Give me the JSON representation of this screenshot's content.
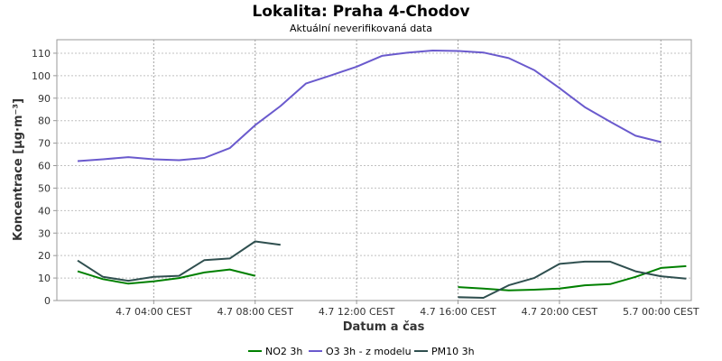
{
  "chart_data": {
    "type": "line",
    "title": "Lokalita: Praha 4-Chodov",
    "subtitle": "Aktuální neverifikovaná data",
    "xlabel": "Datum a čas",
    "ylabel": "Koncentrace [µg·m⁻³]",
    "xlim": [
      "4.7 01:00",
      "5.7 00:00"
    ],
    "ylim": [
      0,
      116
    ],
    "y_ticks": [
      0,
      10,
      20,
      30,
      40,
      50,
      60,
      70,
      80,
      90,
      100,
      110
    ],
    "x_ticks": [
      {
        "hour": 4,
        "label": "4.7 04:00 CEST"
      },
      {
        "hour": 8,
        "label": "4.7 08:00 CEST"
      },
      {
        "hour": 12,
        "label": "4.7 12:00 CEST"
      },
      {
        "hour": 16,
        "label": "4.7 16:00 CEST"
      },
      {
        "hour": 20,
        "label": "4.7 20:00 CEST"
      },
      {
        "hour": 24,
        "label": "5.7 00:00 CEST"
      }
    ],
    "grid": true,
    "legend_position": "bottom",
    "series": [
      {
        "name": "NO2 3h",
        "color": "#008000",
        "points": [
          [
            1,
            13.0
          ],
          [
            2,
            9.5
          ],
          [
            3,
            7.5
          ],
          [
            4,
            8.5
          ],
          [
            5,
            10.0
          ],
          [
            6,
            12.5
          ],
          [
            7,
            13.8
          ],
          [
            8,
            11.0
          ],
          null,
          [
            16,
            6.0
          ],
          [
            17,
            5.3
          ],
          [
            18,
            4.5
          ],
          [
            19,
            4.8
          ],
          [
            20,
            5.3
          ],
          [
            21,
            6.8
          ],
          [
            22,
            7.3
          ],
          [
            23,
            10.5
          ],
          [
            24,
            14.5
          ],
          [
            25,
            15.3
          ]
        ]
      },
      {
        "name": "O3 3h - z modelu",
        "color": "#6a5acd",
        "points": [
          [
            1,
            62.0
          ],
          [
            2,
            62.8
          ],
          [
            3,
            63.8
          ],
          [
            4,
            62.8
          ],
          [
            5,
            62.4
          ],
          [
            6,
            63.4
          ],
          [
            7,
            67.8
          ],
          [
            8,
            78.0
          ],
          [
            9,
            86.5
          ],
          [
            10,
            96.5
          ],
          [
            11,
            100.2
          ],
          [
            12,
            104.0
          ],
          [
            13,
            108.8
          ],
          [
            14,
            110.2
          ],
          [
            15,
            111.2
          ],
          [
            16,
            111.0
          ],
          [
            17,
            110.3
          ],
          [
            18,
            107.8
          ],
          [
            19,
            102.5
          ],
          [
            20,
            94.5
          ],
          [
            21,
            86.0
          ],
          [
            22,
            79.5
          ],
          [
            23,
            73.3
          ],
          [
            24,
            70.5
          ]
        ]
      },
      {
        "name": "PM10 3h",
        "color": "#2f4f4f",
        "points": [
          [
            1,
            17.8
          ],
          [
            2,
            10.5
          ],
          [
            3,
            8.8
          ],
          [
            4,
            10.5
          ],
          [
            5,
            11.0
          ],
          [
            6,
            18.0
          ],
          [
            7,
            18.7
          ],
          [
            8,
            26.3
          ],
          [
            9,
            24.8
          ],
          null,
          [
            16,
            1.5
          ],
          [
            17,
            1.2
          ],
          [
            18,
            6.8
          ],
          [
            19,
            10.0
          ],
          [
            20,
            16.3
          ],
          [
            21,
            17.3
          ],
          [
            22,
            17.3
          ],
          [
            23,
            13.0
          ],
          [
            24,
            10.8
          ],
          [
            25,
            9.7
          ]
        ]
      }
    ]
  }
}
